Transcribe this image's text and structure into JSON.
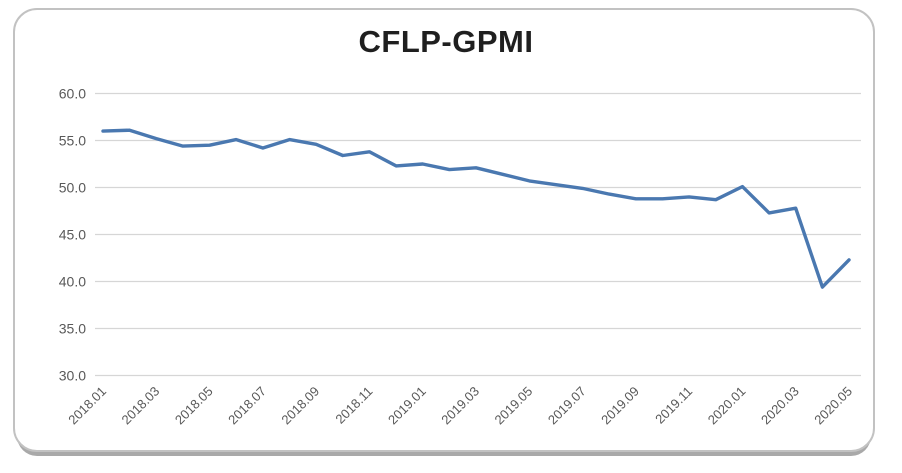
{
  "chart_data": {
    "type": "line",
    "title": "CFLP-GPMI",
    "x": [
      "2018.01",
      "2018.02",
      "2018.03",
      "2018.04",
      "2018.05",
      "2018.06",
      "2018.07",
      "2018.08",
      "2018.09",
      "2018.10",
      "2018.11",
      "2018.12",
      "2019.01",
      "2019.02",
      "2019.03",
      "2019.04",
      "2019.05",
      "2019.06",
      "2019.07",
      "2019.08",
      "2019.09",
      "2019.10",
      "2019.11",
      "2019.12",
      "2020.01",
      "2020.02",
      "2020.03",
      "2020.04",
      "2020.05"
    ],
    "series": [
      {
        "name": "CFLP-GPMI",
        "values": [
          56.0,
          56.1,
          55.2,
          54.4,
          54.5,
          55.1,
          54.2,
          55.1,
          54.6,
          53.4,
          53.8,
          52.3,
          52.5,
          51.9,
          52.1,
          51.4,
          50.7,
          50.3,
          49.9,
          49.3,
          48.8,
          48.8,
          49.0,
          48.7,
          50.1,
          47.3,
          47.8,
          39.4,
          42.3
        ],
        "color": "#4A78B0"
      }
    ],
    "xtick_labels_shown": [
      "2018.01",
      "2018.03",
      "2018.05",
      "2018.07",
      "2018.09",
      "2018.11",
      "2019.01",
      "2019.03",
      "2019.05",
      "2019.07",
      "2019.09",
      "2019.11",
      "2020.01",
      "2020.03",
      "2020.05"
    ],
    "xtick_every": 2,
    "xtick_rotation_deg": -45,
    "ylim": [
      30,
      60
    ],
    "yticks": [
      60,
      55,
      50,
      45,
      40,
      35,
      30
    ],
    "ytick_labels": [
      "60.0",
      "55.0",
      "50.0",
      "45.0",
      "40.0",
      "35.0",
      "30.0"
    ],
    "grid": "horizontal-only",
    "legend": "none",
    "xlabel": "",
    "ylabel": "",
    "colors": {
      "axis_label": "#595959",
      "gridline": "#d6d6d6",
      "title": "#1f1f1f",
      "frame_border": "#c2c2c2",
      "frame_shadow": "#a9a9a9",
      "background": "#ffffff"
    }
  }
}
